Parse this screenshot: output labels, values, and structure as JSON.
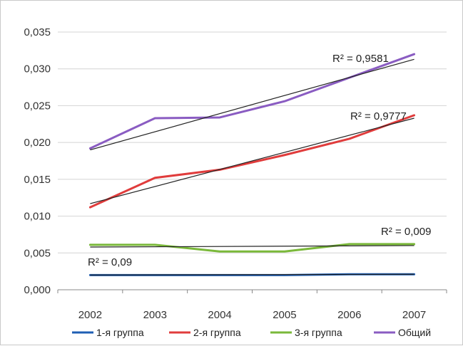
{
  "chart_data": {
    "type": "line",
    "title": "",
    "xlabel": "",
    "ylabel": "",
    "x": [
      2002,
      2003,
      2004,
      2005,
      2006,
      2007
    ],
    "ylim": [
      0,
      0.035
    ],
    "y_ticks": [
      "0,000",
      "0,005",
      "0,010",
      "0,015",
      "0,020",
      "0,025",
      "0,030",
      "0,035"
    ],
    "y_tick_values": [
      0,
      0.005,
      0.01,
      0.015,
      0.02,
      0.025,
      0.03,
      0.035
    ],
    "grid": "horizontal",
    "legend_position": "bottom",
    "series": [
      {
        "name": "1-я группа",
        "color": "#1f5fb4",
        "values": [
          0.002,
          0.002,
          0.002,
          0.002,
          0.0021,
          0.0021
        ]
      },
      {
        "name": "2-я группа",
        "color": "#e03c3c",
        "values": [
          0.0112,
          0.0152,
          0.0163,
          0.0183,
          0.0205,
          0.0237
        ]
      },
      {
        "name": "3-я группа",
        "color": "#7ab83a",
        "values": [
          0.0061,
          0.0061,
          0.0052,
          0.0052,
          0.0062,
          0.0062
        ]
      },
      {
        "name": "Общий",
        "color": "#8a5cc2",
        "values": [
          0.0192,
          0.0233,
          0.0234,
          0.0256,
          0.0288,
          0.032
        ]
      }
    ],
    "trendlines": [
      {
        "series": "1-я группа",
        "start": 0.002,
        "end": 0.0021,
        "r2": "R² = 0,09"
      },
      {
        "series": "2-я группа",
        "start": 0.0117,
        "end": 0.0233,
        "r2": "R² = 0,9777"
      },
      {
        "series": "3-я группа",
        "start": 0.0058,
        "end": 0.006,
        "r2": "R² = 0,009"
      },
      {
        "series": "Общий",
        "start": 0.019,
        "end": 0.0313,
        "r2": "R² = 0,9581"
      }
    ],
    "trendline_color": "#222222"
  }
}
